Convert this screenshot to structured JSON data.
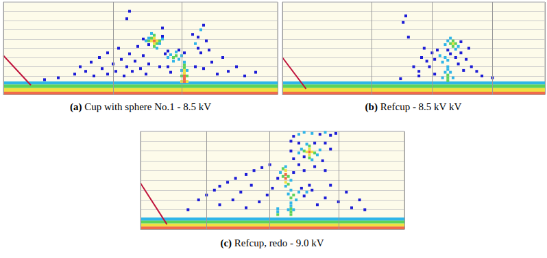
{
  "chart_data": [
    {
      "type": "scatter",
      "panel_label": "(a)",
      "title": "Cup with sphere No.1 - 8.5 kV",
      "xlim": [
        0,
        100
      ],
      "ylim": [
        0,
        100
      ],
      "xticks": [
        0,
        40,
        65,
        100
      ],
      "yticks": [
        0,
        10,
        20,
        30,
        40,
        50,
        60,
        70,
        80,
        90,
        100
      ],
      "grid": true,
      "tick_labels": false,
      "colors": [
        "#1c1cd6",
        "#2fb5e8",
        "#5cd35a",
        "#f0e040",
        "#f06a4a"
      ],
      "band": [
        [
          0,
          3,
          5
        ],
        [
          3,
          7,
          4
        ],
        [
          7,
          11,
          3
        ],
        [
          11,
          14,
          2
        ]
      ],
      "cells": [
        [
          55,
          58,
          5
        ],
        [
          54,
          58,
          4
        ],
        [
          56,
          58,
          4
        ],
        [
          55,
          61,
          4
        ],
        [
          55,
          55,
          4
        ],
        [
          53,
          58,
          3
        ],
        [
          57,
          58,
          3
        ],
        [
          55,
          64,
          3
        ],
        [
          55,
          52,
          3
        ],
        [
          54,
          61,
          3
        ],
        [
          56,
          55,
          3
        ],
        [
          53,
          61,
          2
        ],
        [
          57,
          55,
          2
        ],
        [
          52,
          58,
          2
        ],
        [
          58,
          60,
          2
        ],
        [
          54,
          66,
          2
        ],
        [
          56,
          50,
          2
        ],
        [
          53,
          54,
          1
        ],
        [
          58,
          63,
          1
        ],
        [
          51,
          60,
          1
        ],
        [
          62,
          40,
          3
        ],
        [
          63,
          42,
          3
        ],
        [
          64,
          38,
          2
        ],
        [
          61,
          43,
          2
        ],
        [
          65,
          42,
          2
        ],
        [
          60,
          40,
          2
        ],
        [
          63,
          46,
          2
        ],
        [
          66,
          45,
          1
        ],
        [
          59,
          44,
          1
        ],
        [
          62,
          36,
          2
        ],
        [
          64,
          48,
          1
        ],
        [
          60,
          47,
          1
        ],
        [
          66,
          14,
          5
        ],
        [
          66,
          17,
          5
        ],
        [
          66,
          20,
          5
        ],
        [
          66,
          23,
          4
        ],
        [
          66,
          26,
          4
        ],
        [
          66,
          29,
          3
        ],
        [
          66,
          32,
          3
        ],
        [
          65,
          20,
          3
        ],
        [
          67,
          20,
          3
        ],
        [
          65,
          26,
          2
        ],
        [
          67,
          26,
          2
        ],
        [
          66,
          35,
          2
        ],
        [
          65,
          14,
          4
        ],
        [
          67,
          14,
          4
        ],
        [
          70,
          55,
          2
        ],
        [
          71,
          62,
          1
        ],
        [
          72,
          70,
          2
        ],
        [
          73,
          75,
          1
        ],
        [
          71,
          50,
          1
        ],
        [
          74,
          58,
          1
        ],
        [
          69,
          65,
          1
        ],
        [
          72,
          45,
          1
        ],
        [
          75,
          48,
          1
        ],
        [
          26,
          22,
          1
        ],
        [
          28,
          30,
          1
        ],
        [
          30,
          25,
          1
        ],
        [
          32,
          35,
          1
        ],
        [
          33,
          20,
          1
        ],
        [
          35,
          40,
          1
        ],
        [
          36,
          28,
          1
        ],
        [
          38,
          22,
          1
        ],
        [
          38,
          45,
          1
        ],
        [
          40,
          33,
          1
        ],
        [
          41,
          25,
          1
        ],
        [
          42,
          50,
          1
        ],
        [
          43,
          38,
          1
        ],
        [
          44,
          20,
          1
        ],
        [
          45,
          30,
          1
        ],
        [
          46,
          44,
          1
        ],
        [
          47,
          25,
          1
        ],
        [
          48,
          36,
          1
        ],
        [
          49,
          52,
          1
        ],
        [
          50,
          28,
          1
        ],
        [
          51,
          42,
          1
        ],
        [
          52,
          22,
          1
        ],
        [
          53,
          33,
          1
        ],
        [
          46,
          90,
          1
        ],
        [
          45,
          82,
          1
        ],
        [
          58,
          72,
          1
        ],
        [
          60,
          30,
          1
        ],
        [
          61,
          24,
          1
        ],
        [
          57,
          30,
          1
        ],
        [
          70,
          30,
          1
        ],
        [
          73,
          28,
          1
        ],
        [
          76,
          35,
          1
        ],
        [
          78,
          22,
          1
        ],
        [
          80,
          40,
          1
        ],
        [
          82,
          25,
          1
        ],
        [
          85,
          30,
          1
        ],
        [
          88,
          20,
          1
        ],
        [
          92,
          24,
          1
        ],
        [
          20,
          18,
          1
        ],
        [
          15,
          16,
          1
        ]
      ],
      "line": {
        "type": "line",
        "color": "#c0143c",
        "x": [
          0,
          10
        ],
        "values": [
          42,
          10
        ]
      }
    },
    {
      "type": "scatter",
      "panel_label": "(b)",
      "title": "Refcup - 8.5 kV kV",
      "xlim": [
        0,
        100
      ],
      "ylim": [
        0,
        100
      ],
      "xticks": [
        0,
        34,
        57,
        80,
        100
      ],
      "yticks": [
        0,
        10,
        20,
        30,
        40,
        50,
        60,
        70,
        80,
        90,
        100
      ],
      "grid": true,
      "tick_labels": false,
      "colors": [
        "#1c1cd6",
        "#2fb5e8",
        "#5cd35a",
        "#f0e040",
        "#f06a4a"
      ],
      "band": [
        [
          0,
          3,
          5
        ],
        [
          3,
          7,
          4
        ],
        [
          7,
          11,
          3
        ],
        [
          11,
          14,
          2
        ]
      ],
      "cells": [
        [
          65,
          55,
          4
        ],
        [
          64,
          55,
          3
        ],
        [
          66,
          55,
          3
        ],
        [
          65,
          58,
          3
        ],
        [
          65,
          52,
          3
        ],
        [
          63,
          58,
          2
        ],
        [
          67,
          52,
          2
        ],
        [
          64,
          61,
          2
        ],
        [
          66,
          49,
          2
        ],
        [
          62,
          54,
          2
        ],
        [
          68,
          57,
          1
        ],
        [
          63,
          48,
          1
        ],
        [
          60,
          42,
          2
        ],
        [
          62,
          40,
          2
        ],
        [
          58,
          38,
          1
        ],
        [
          61,
          35,
          2
        ],
        [
          63,
          37,
          2
        ],
        [
          64,
          44,
          1
        ],
        [
          66,
          40,
          1
        ],
        [
          57,
          45,
          1
        ],
        [
          59,
          48,
          1
        ],
        [
          68,
          45,
          1
        ],
        [
          70,
          38,
          1
        ],
        [
          55,
          36,
          1
        ],
        [
          53,
          40,
          1
        ],
        [
          56,
          30,
          1
        ],
        [
          67,
          33,
          1
        ],
        [
          63,
          15,
          3
        ],
        [
          63,
          18,
          3
        ],
        [
          63,
          21,
          3
        ],
        [
          62,
          24,
          2
        ],
        [
          64,
          24,
          2
        ],
        [
          63,
          27,
          2
        ],
        [
          63,
          30,
          2
        ],
        [
          61,
          18,
          2
        ],
        [
          65,
          18,
          2
        ],
        [
          47,
          85,
          1
        ],
        [
          46,
          78,
          1
        ],
        [
          48,
          62,
          1
        ],
        [
          50,
          30,
          1
        ],
        [
          52,
          25,
          1
        ],
        [
          54,
          50,
          1
        ],
        [
          72,
          30,
          1
        ],
        [
          74,
          25,
          1
        ],
        [
          76,
          20,
          1
        ],
        [
          52,
          20,
          1
        ],
        [
          69,
          26,
          1
        ],
        [
          71,
          50,
          1
        ],
        [
          58,
          22,
          1
        ],
        [
          80,
          18,
          1
        ],
        [
          45,
          17,
          1
        ]
      ],
      "line": {
        "type": "line",
        "color": "#c0143c",
        "x": [
          0,
          9
        ],
        "values": [
          40,
          6
        ]
      }
    },
    {
      "type": "scatter",
      "panel_label": "(c)",
      "title": "Refcup, redo - 9.0 kV",
      "xlim": [
        0,
        100
      ],
      "ylim": [
        0,
        100
      ],
      "xticks": [
        0,
        25,
        49,
        75,
        100
      ],
      "yticks": [
        0,
        10,
        20,
        30,
        40,
        50,
        60,
        70,
        80,
        90,
        100
      ],
      "grid": true,
      "tick_labels": false,
      "colors": [
        "#1c1cd6",
        "#2fb5e8",
        "#5cd35a",
        "#f0e040",
        "#f06a4a"
      ],
      "band": [
        [
          0,
          3,
          5
        ],
        [
          3,
          6,
          4
        ],
        [
          6,
          9,
          3
        ],
        [
          9,
          12,
          2
        ]
      ],
      "cells": [
        [
          64,
          79,
          5
        ],
        [
          63,
          79,
          4
        ],
        [
          65,
          79,
          4
        ],
        [
          64,
          82,
          4
        ],
        [
          64,
          76,
          4
        ],
        [
          62,
          80,
          3
        ],
        [
          66,
          78,
          3
        ],
        [
          64,
          85,
          3
        ],
        [
          64,
          73,
          3
        ],
        [
          61,
          82,
          2
        ],
        [
          67,
          76,
          2
        ],
        [
          63,
          87,
          2
        ],
        [
          65,
          71,
          2
        ],
        [
          60,
          78,
          2
        ],
        [
          68,
          81,
          2
        ],
        [
          62,
          74,
          1
        ],
        [
          66,
          88,
          1
        ],
        [
          55,
          52,
          5
        ],
        [
          55,
          56,
          5
        ],
        [
          55,
          60,
          4
        ],
        [
          55,
          48,
          4
        ],
        [
          54,
          54,
          3
        ],
        [
          56,
          54,
          3
        ],
        [
          54,
          62,
          3
        ],
        [
          56,
          46,
          3
        ],
        [
          55,
          64,
          2
        ],
        [
          55,
          44,
          2
        ],
        [
          53,
          58,
          2
        ],
        [
          57,
          50,
          2
        ],
        [
          52,
          52,
          1
        ],
        [
          58,
          58,
          1
        ],
        [
          60,
          97,
          2
        ],
        [
          62,
          99,
          2
        ],
        [
          65,
          98,
          2
        ],
        [
          68,
          97,
          1
        ],
        [
          70,
          99,
          2
        ],
        [
          72,
          96,
          1
        ],
        [
          74,
          98,
          1
        ],
        [
          58,
          95,
          1
        ],
        [
          57,
          90,
          1
        ],
        [
          60,
          88,
          1
        ],
        [
          70,
          88,
          1
        ],
        [
          72,
          82,
          1
        ],
        [
          69,
          70,
          1
        ],
        [
          58,
          72,
          1
        ],
        [
          60,
          66,
          1
        ],
        [
          66,
          64,
          1
        ],
        [
          62,
          60,
          1
        ],
        [
          70,
          60,
          1
        ],
        [
          57,
          80,
          1
        ],
        [
          57,
          32,
          3
        ],
        [
          58,
          35,
          3
        ],
        [
          56,
          36,
          2
        ],
        [
          59,
          30,
          2
        ],
        [
          60,
          38,
          2
        ],
        [
          57,
          40,
          2
        ],
        [
          61,
          42,
          1
        ],
        [
          62,
          34,
          1
        ],
        [
          63,
          38,
          2
        ],
        [
          65,
          40,
          1
        ],
        [
          64,
          45,
          1
        ],
        [
          52,
          15,
          3
        ],
        [
          52,
          18,
          2
        ],
        [
          52,
          21,
          2
        ],
        [
          57,
          15,
          3
        ],
        [
          57,
          18,
          3
        ],
        [
          57,
          21,
          3
        ],
        [
          57,
          24,
          2
        ],
        [
          57,
          27,
          2
        ],
        [
          56,
          20,
          2
        ],
        [
          58,
          20,
          2
        ],
        [
          22,
          30,
          1
        ],
        [
          25,
          35,
          1
        ],
        [
          28,
          40,
          1
        ],
        [
          30,
          44,
          1
        ],
        [
          33,
          48,
          1
        ],
        [
          36,
          52,
          1
        ],
        [
          40,
          56,
          1
        ],
        [
          43,
          60,
          1
        ],
        [
          46,
          63,
          1
        ],
        [
          49,
          66,
          1
        ],
        [
          30,
          25,
          1
        ],
        [
          35,
          30,
          1
        ],
        [
          38,
          38,
          1
        ],
        [
          40,
          22,
          1
        ],
        [
          42,
          45,
          1
        ],
        [
          45,
          28,
          1
        ],
        [
          48,
          35,
          1
        ],
        [
          50,
          42,
          1
        ],
        [
          67,
          25,
          1
        ],
        [
          70,
          32,
          1
        ],
        [
          72,
          45,
          1
        ],
        [
          75,
          28,
          1
        ],
        [
          78,
          38,
          1
        ],
        [
          80,
          22,
          1
        ],
        [
          83,
          30,
          1
        ],
        [
          85,
          20,
          1
        ],
        [
          18,
          20,
          1
        ]
      ],
      "line": {
        "type": "line",
        "color": "#c0143c",
        "x": [
          0,
          10
        ],
        "values": [
          47,
          5
        ]
      }
    }
  ]
}
